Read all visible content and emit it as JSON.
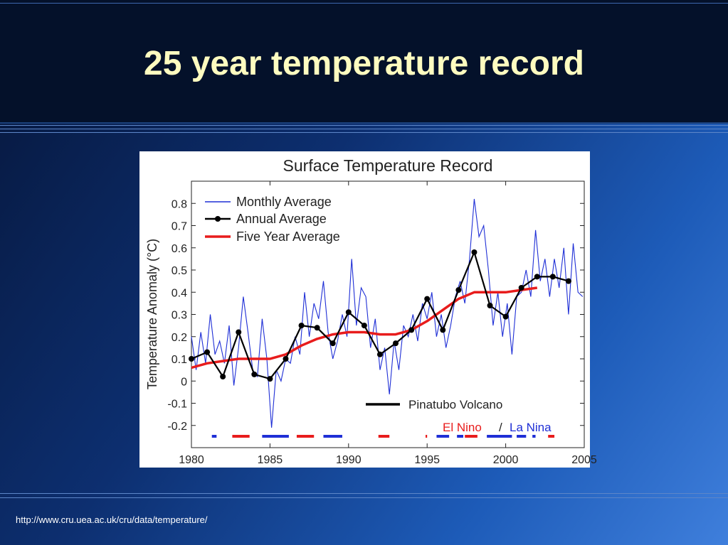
{
  "slide": {
    "title": "25 year temperature record",
    "source": "http://www.cru.uea.ac.uk/cru/data/temperature/"
  },
  "chart_data": {
    "type": "line",
    "title": "Surface Temperature Record",
    "ylabel": "Temperature Anomaly (°C)",
    "xlabel": "",
    "xlim": [
      1980,
      2005
    ],
    "ylim": [
      -0.3,
      0.9
    ],
    "x_ticks": [
      "1980",
      "1985",
      "1990",
      "1995",
      "2000",
      "2005"
    ],
    "y_ticks": [
      "0.8",
      "0.7",
      "0.6",
      "0.5",
      "0.4",
      "0.3",
      "0.2",
      "0.1",
      "0",
      "-0.1",
      "-0.2"
    ],
    "grid": false,
    "legend_position": "top-left",
    "colors": {
      "monthly": "#1f2fd6",
      "annual": "#000000",
      "five_year": "#e81c1c",
      "el_nino": "#e81c1c",
      "la_nina": "#1f2fd6"
    },
    "series": [
      {
        "name": "Monthly Average",
        "x": [
          1980.0,
          1980.3,
          1980.6,
          1980.9,
          1981.2,
          1981.5,
          1981.8,
          1982.1,
          1982.4,
          1982.7,
          1983.0,
          1983.3,
          1983.6,
          1983.9,
          1984.2,
          1984.5,
          1984.8,
          1985.1,
          1985.4,
          1985.7,
          1986.0,
          1986.3,
          1986.6,
          1986.9,
          1987.2,
          1987.5,
          1987.8,
          1988.1,
          1988.4,
          1988.7,
          1989.0,
          1989.3,
          1989.6,
          1989.9,
          1990.2,
          1990.5,
          1990.8,
          1991.1,
          1991.4,
          1991.7,
          1992.0,
          1992.3,
          1992.6,
          1992.9,
          1993.2,
          1993.5,
          1993.8,
          1994.1,
          1994.4,
          1994.7,
          1995.0,
          1995.3,
          1995.6,
          1995.9,
          1996.2,
          1996.5,
          1996.8,
          1997.1,
          1997.4,
          1997.7,
          1998.0,
          1998.3,
          1998.6,
          1998.9,
          1999.2,
          1999.5,
          1999.8,
          2000.1,
          2000.4,
          2000.7,
          2001.0,
          2001.3,
          2001.6,
          2001.9,
          2002.2,
          2002.5,
          2002.8,
          2003.1,
          2003.4,
          2003.7,
          2004.0,
          2004.3,
          2004.6,
          2004.9
        ],
        "values": [
          0.2,
          0.05,
          0.22,
          0.08,
          0.3,
          0.12,
          0.18,
          0.08,
          0.25,
          -0.02,
          0.15,
          0.38,
          0.22,
          0.05,
          0.02,
          0.28,
          0.1,
          -0.21,
          0.05,
          0.0,
          0.1,
          0.08,
          0.2,
          0.12,
          0.4,
          0.2,
          0.35,
          0.28,
          0.45,
          0.22,
          0.1,
          0.18,
          0.3,
          0.2,
          0.55,
          0.25,
          0.42,
          0.38,
          0.15,
          0.28,
          0.05,
          0.15,
          -0.06,
          0.18,
          0.05,
          0.25,
          0.2,
          0.3,
          0.18,
          0.35,
          0.28,
          0.4,
          0.2,
          0.3,
          0.15,
          0.25,
          0.38,
          0.45,
          0.35,
          0.55,
          0.82,
          0.65,
          0.7,
          0.5,
          0.25,
          0.4,
          0.2,
          0.35,
          0.12,
          0.38,
          0.4,
          0.5,
          0.38,
          0.68,
          0.45,
          0.55,
          0.38,
          0.55,
          0.42,
          0.6,
          0.3,
          0.62,
          0.4,
          0.38
        ]
      },
      {
        "name": "Annual Average",
        "x": [
          1980,
          1981,
          1982,
          1983,
          1984,
          1985,
          1986,
          1987,
          1988,
          1989,
          1990,
          1991,
          1992,
          1993,
          1994,
          1995,
          1996,
          1997,
          1998,
          1999,
          2000,
          2001,
          2002,
          2003,
          2004
        ],
        "values": [
          0.1,
          0.13,
          0.02,
          0.22,
          0.03,
          0.01,
          0.1,
          0.25,
          0.24,
          0.17,
          0.31,
          0.25,
          0.12,
          0.17,
          0.23,
          0.37,
          0.23,
          0.41,
          0.58,
          0.34,
          0.29,
          0.42,
          0.47,
          0.47,
          0.45
        ]
      },
      {
        "name": "Five Year Average",
        "x": [
          1980,
          1981,
          1982,
          1983,
          1984,
          1985,
          1986,
          1987,
          1988,
          1989,
          1990,
          1991,
          1992,
          1993,
          1994,
          1995,
          1996,
          1997,
          1998,
          1999,
          2000,
          2001,
          2002
        ],
        "values": [
          0.06,
          0.08,
          0.09,
          0.1,
          0.1,
          0.1,
          0.12,
          0.16,
          0.19,
          0.21,
          0.22,
          0.22,
          0.21,
          0.21,
          0.23,
          0.27,
          0.32,
          0.37,
          0.4,
          0.4,
          0.4,
          0.41,
          0.42
        ]
      }
    ],
    "annotations": {
      "pinatubo_label": "Pinatubo Volcano",
      "el_nino_label": "El Nino",
      "separator": "/",
      "la_nina_label": "La Nina",
      "el_nino_periods": [
        [
          1982.6,
          1983.7
        ],
        [
          1986.7,
          1987.8
        ],
        [
          1991.9,
          1992.6
        ],
        [
          1994.9,
          1995.0
        ],
        [
          1997.4,
          1998.2
        ],
        [
          2002.7,
          2003.1
        ]
      ],
      "la_nina_periods": [
        [
          1981.3,
          1981.6
        ],
        [
          1984.5,
          1986.2
        ],
        [
          1988.4,
          1989.6
        ],
        [
          1995.6,
          1996.4
        ],
        [
          1996.9,
          1997.3
        ],
        [
          1998.8,
          2000.4
        ],
        [
          2000.7,
          2001.3
        ],
        [
          2001.7,
          2001.9
        ]
      ]
    }
  }
}
